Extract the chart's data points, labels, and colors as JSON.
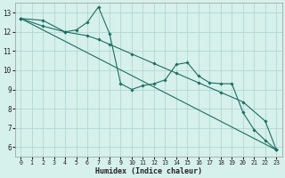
{
  "xlabel": "Humidex (Indice chaleur)",
  "xlim": [
    -0.5,
    23.5
  ],
  "ylim": [
    5.5,
    13.5
  ],
  "xticks": [
    0,
    1,
    2,
    3,
    4,
    5,
    6,
    7,
    8,
    9,
    10,
    11,
    12,
    13,
    14,
    15,
    16,
    17,
    18,
    19,
    20,
    21,
    22,
    23
  ],
  "yticks": [
    6,
    7,
    8,
    9,
    10,
    11,
    12,
    13
  ],
  "bg_color": "#d6f0ec",
  "grid_color": "#aad4cc",
  "line_color": "#1e6e62",
  "series": [
    {
      "x": [
        0,
        2,
        4,
        5,
        6,
        7,
        8,
        9,
        10,
        11,
        12,
        13,
        14,
        15,
        16,
        17,
        18,
        19,
        20,
        21,
        22,
        23
      ],
      "y": [
        12.7,
        12.6,
        12.0,
        12.1,
        12.5,
        13.3,
        11.9,
        9.3,
        9.0,
        9.2,
        9.3,
        9.5,
        10.3,
        10.4,
        9.7,
        9.35,
        9.3,
        9.3,
        7.8,
        6.9,
        6.35,
        5.85
      ]
    },
    {
      "x": [
        0,
        2,
        4,
        6,
        7,
        8,
        10,
        12,
        14,
        16,
        18,
        20,
        22,
        23
      ],
      "y": [
        12.7,
        12.3,
        12.0,
        11.8,
        11.6,
        11.35,
        10.85,
        10.35,
        9.85,
        9.35,
        8.85,
        8.35,
        7.35,
        5.85
      ]
    },
    {
      "x": [
        0,
        23
      ],
      "y": [
        12.7,
        5.85
      ]
    }
  ]
}
